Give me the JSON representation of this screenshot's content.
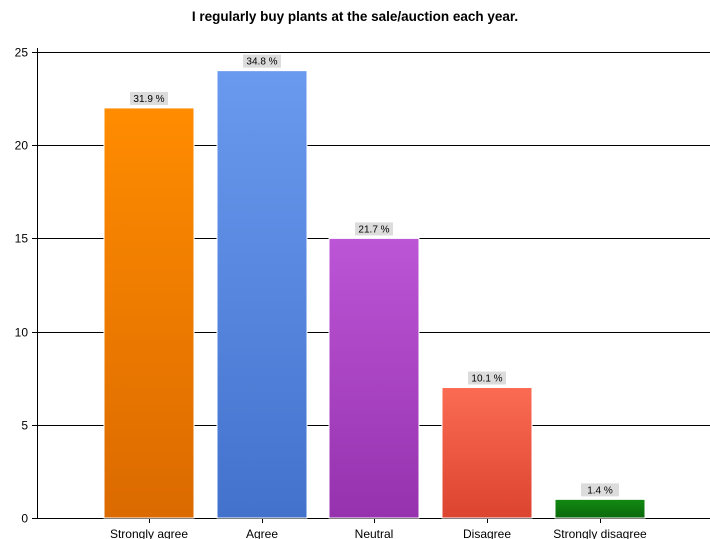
{
  "chart_data": {
    "type": "bar",
    "title": "I regularly buy plants at the sale/auction each year.",
    "xlabel": "",
    "ylabel": "",
    "categories": [
      "Strongly agree",
      "Agree",
      "Neutral",
      "Disagree",
      "Strongly disagree"
    ],
    "values": [
      22,
      24,
      15,
      7,
      1
    ],
    "data_labels": [
      "31.9 %",
      "34.8 %",
      "21.7 %",
      "10.1 %",
      "1.4 %"
    ],
    "ylim": [
      0,
      25
    ],
    "yticks": [
      0,
      5,
      10,
      15,
      20,
      25
    ],
    "grid": true,
    "legend": "none",
    "colors": [
      {
        "top": "#ff8c00",
        "bottom": "#db6a00"
      },
      {
        "top": "#6a9aef",
        "bottom": "#4272cc"
      },
      {
        "top": "#bc55d6",
        "bottom": "#9632ae"
      },
      {
        "top": "#fb6b53",
        "bottom": "#dc4430"
      },
      {
        "top": "#138a13",
        "bottom": "#0b690b"
      }
    ],
    "label_box_color": "#dcdcdc"
  }
}
